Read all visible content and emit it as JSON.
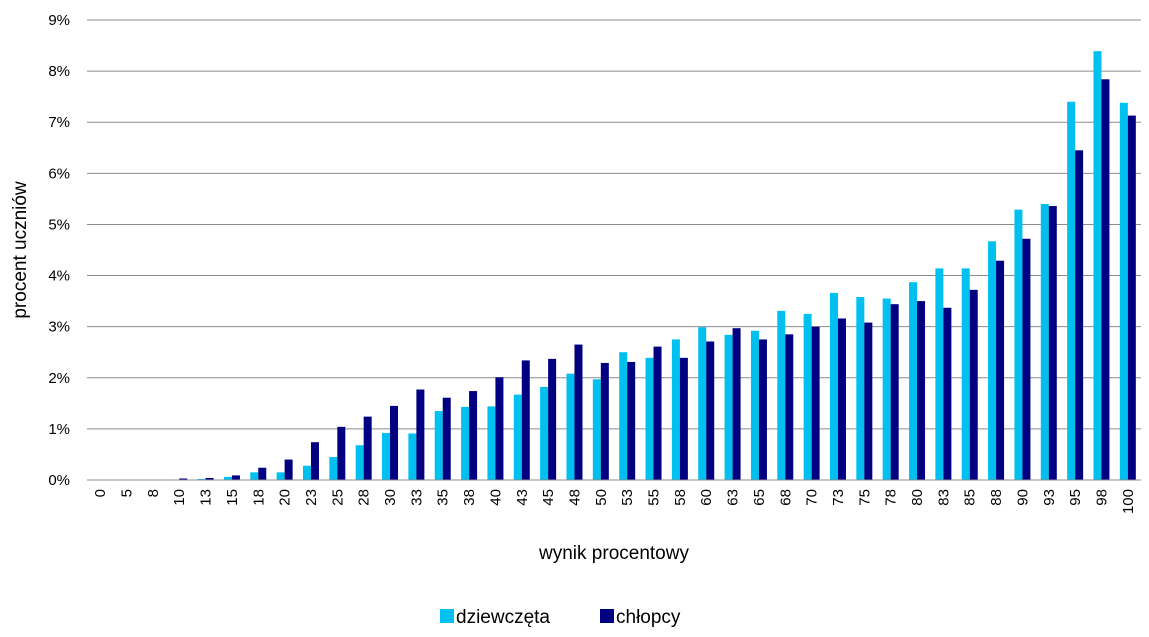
{
  "chart_data": {
    "type": "bar",
    "xlabel": "wynik procentowy",
    "ylabel": "procent uczniów",
    "ylim": [
      0,
      9
    ],
    "yticks": [
      0,
      1,
      2,
      3,
      4,
      5,
      6,
      7,
      8,
      9
    ],
    "ytick_labels": [
      "0%",
      "1%",
      "2%",
      "3%",
      "4%",
      "5%",
      "6%",
      "7%",
      "8%",
      "9%"
    ],
    "grid": true,
    "legend_position": "bottom-center",
    "categories": [
      "0",
      "5",
      "8",
      "10",
      "13",
      "15",
      "18",
      "20",
      "23",
      "25",
      "28",
      "30",
      "33",
      "35",
      "38",
      "40",
      "43",
      "45",
      "48",
      "50",
      "53",
      "55",
      "58",
      "60",
      "63",
      "65",
      "68",
      "70",
      "73",
      "75",
      "78",
      "80",
      "83",
      "85",
      "88",
      "90",
      "93",
      "95",
      "98",
      "100"
    ],
    "series": [
      {
        "name": "dziewczęta",
        "color": "#00c0f0",
        "values": [
          0.0,
          0.0,
          0.0,
          0.01,
          0.02,
          0.06,
          0.15,
          0.15,
          0.28,
          0.45,
          0.68,
          0.92,
          0.91,
          1.35,
          1.43,
          1.44,
          1.67,
          1.82,
          2.08,
          1.97,
          2.5,
          2.39,
          2.75,
          2.99,
          2.84,
          2.92,
          3.31,
          3.25,
          3.66,
          3.58,
          3.55,
          3.87,
          4.14,
          4.14,
          4.67,
          5.29,
          5.4,
          7.4,
          8.39,
          7.38
        ]
      },
      {
        "name": "chłopcy",
        "color": "#000080",
        "values": [
          0.0,
          0.0,
          0.0,
          0.03,
          0.04,
          0.09,
          0.24,
          0.4,
          0.74,
          1.04,
          1.24,
          1.45,
          1.77,
          1.61,
          1.74,
          2.01,
          2.34,
          2.37,
          2.65,
          2.29,
          2.31,
          2.61,
          2.39,
          2.71,
          2.97,
          2.75,
          2.85,
          3.0,
          3.16,
          3.08,
          3.44,
          3.5,
          3.37,
          3.72,
          4.29,
          4.72,
          5.36,
          6.45,
          7.84,
          7.13
        ]
      }
    ]
  }
}
